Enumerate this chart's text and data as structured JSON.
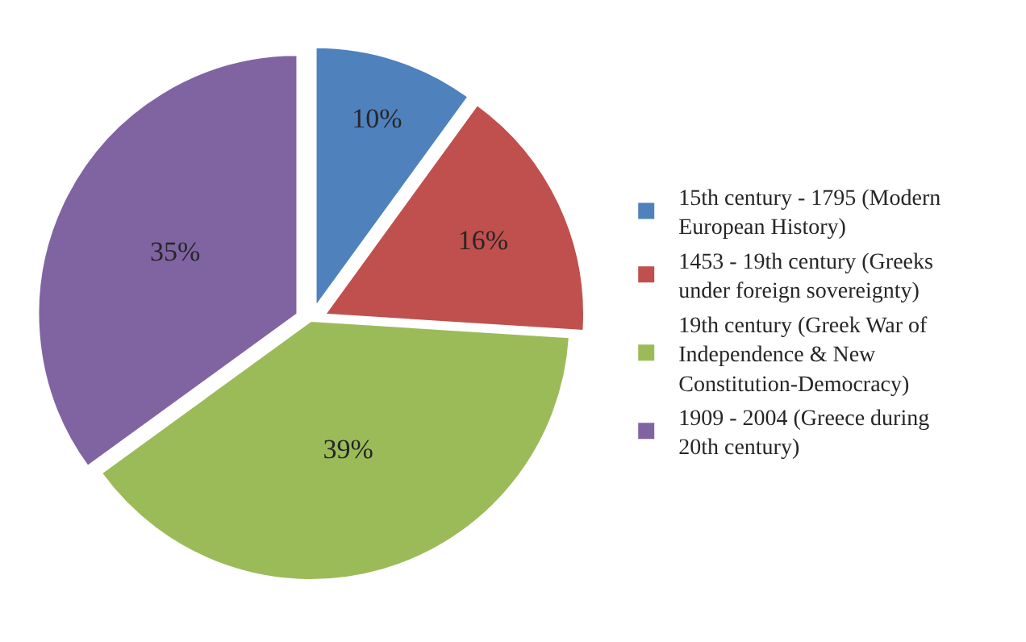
{
  "chart_data": {
    "type": "pie",
    "categories": [
      "15th century - 1795 (Modern European History)",
      "1453 - 19th century (Greeks under foreign sovereignty)",
      "19th century (Greek War of Independence & New Constitution-Democracy)",
      "1909 - 2004 (Greece during 20th century)"
    ],
    "values": [
      10,
      16,
      39,
      35
    ],
    "value_labels": [
      "10%",
      "16%",
      "39%",
      "35%"
    ],
    "colors": [
      "#4f81bd",
      "#c0504d",
      "#9bbb59",
      "#8064a2"
    ],
    "legend": "right"
  }
}
